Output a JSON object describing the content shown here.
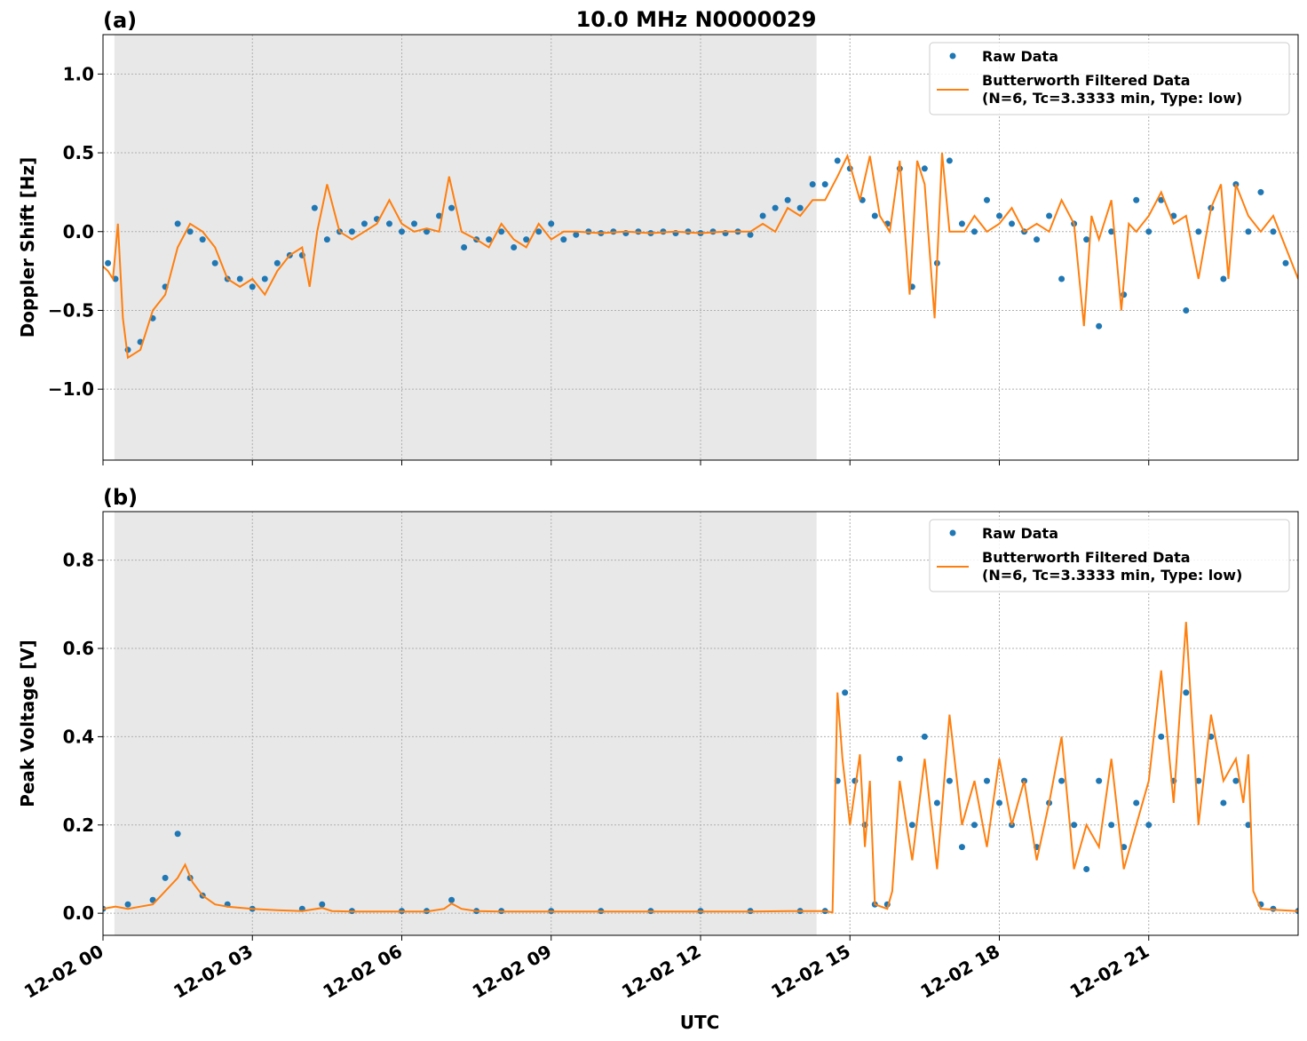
{
  "figure": {
    "title": "10.0 MHz N0000029",
    "xlabel": "UTC"
  },
  "colors": {
    "raw": "#1f77b4",
    "filtered": "#ff7f0e",
    "shade": "#e8e8e8",
    "grid": "#b0b0b0"
  },
  "legend": {
    "raw_label": "Raw Data",
    "filtered_label_line1": "Butterworth Filtered Data",
    "filtered_label_line2": "(N=6, Tc=3.3333 min, Type: low)"
  },
  "chart_data": [
    {
      "type": "scatter",
      "panel_label": "(a)",
      "ylabel": "Doppler Shift [Hz]",
      "xlim": [
        0,
        24
      ],
      "ylim": [
        -1.45,
        1.25
      ],
      "yticks": [
        1.0,
        0.5,
        0.0,
        -0.5,
        -1.0
      ],
      "ytick_labels": [
        "1.0",
        "0.5",
        "0.0",
        "−0.5",
        "−1.0"
      ],
      "xticks": [
        0,
        3,
        6,
        9,
        12,
        15,
        18,
        21
      ],
      "xtick_labels": [
        "12-02 00",
        "12-02 03",
        "12-02 06",
        "12-02 09",
        "12-02 12",
        "12-02 15",
        "12-02 18",
        "12-02 21"
      ],
      "shaded_x_range": [
        0.23,
        14.33
      ],
      "grid": true,
      "legend_position": "top-right",
      "series": [
        {
          "name": "Raw Data",
          "style": "points",
          "x": [
            0.1,
            0.25,
            0.5,
            0.75,
            1.0,
            1.25,
            1.5,
            1.75,
            2.0,
            2.25,
            2.5,
            2.75,
            3.0,
            3.25,
            3.5,
            3.75,
            4.0,
            4.25,
            4.5,
            4.75,
            5.0,
            5.25,
            5.5,
            5.75,
            6.0,
            6.25,
            6.5,
            6.75,
            7.0,
            7.25,
            7.5,
            7.75,
            8.0,
            8.25,
            8.5,
            8.75,
            9.0,
            9.25,
            9.5,
            9.75,
            10.0,
            10.25,
            10.5,
            10.75,
            11.0,
            11.25,
            11.5,
            11.75,
            12.0,
            12.25,
            12.5,
            12.75,
            13.0,
            13.25,
            13.5,
            13.75,
            14.0,
            14.25,
            14.5,
            14.75,
            15.0,
            15.25,
            15.5,
            15.75,
            16.0,
            16.25,
            16.5,
            16.75,
            17.0,
            17.25,
            17.5,
            17.75,
            18.0,
            18.25,
            18.5,
            18.75,
            19.0,
            19.25,
            19.5,
            19.75,
            20.0,
            20.25,
            20.5,
            20.75,
            21.0,
            21.25,
            21.5,
            21.75,
            22.0,
            22.25,
            22.5,
            22.75,
            23.0,
            23.25,
            23.5,
            23.75
          ],
          "y": [
            -0.2,
            -0.3,
            -0.75,
            -0.7,
            -0.55,
            -0.35,
            0.05,
            0.0,
            -0.05,
            -0.2,
            -0.3,
            -0.3,
            -0.35,
            -0.3,
            -0.2,
            -0.15,
            -0.15,
            0.15,
            -0.05,
            0.0,
            0.0,
            0.05,
            0.08,
            0.05,
            0.0,
            0.05,
            0.0,
            0.1,
            0.15,
            -0.1,
            -0.05,
            -0.05,
            0.0,
            -0.1,
            -0.05,
            0.0,
            0.05,
            -0.05,
            -0.02,
            0.0,
            -0.01,
            0.0,
            -0.01,
            0.0,
            -0.01,
            0.0,
            -0.01,
            0.0,
            -0.01,
            0.0,
            -0.01,
            0.0,
            -0.02,
            0.1,
            0.15,
            0.2,
            0.15,
            0.3,
            0.3,
            0.45,
            0.4,
            0.2,
            0.1,
            0.05,
            0.4,
            -0.35,
            0.4,
            -0.2,
            0.45,
            0.05,
            0.0,
            0.2,
            0.1,
            0.05,
            0.0,
            -0.05,
            0.1,
            -0.3,
            0.05,
            -0.05,
            -0.6,
            0.0,
            -0.4,
            0.2,
            0.0,
            0.2,
            0.1,
            -0.5,
            0.0,
            0.15,
            -0.3,
            0.3,
            0.0,
            0.25,
            0.0,
            -0.2
          ]
        },
        {
          "name": "Butterworth Filtered Data",
          "style": "line",
          "x": [
            0.0,
            0.1,
            0.2,
            0.3,
            0.4,
            0.5,
            0.75,
            1.0,
            1.25,
            1.5,
            1.75,
            2.0,
            2.25,
            2.5,
            2.75,
            3.0,
            3.25,
            3.5,
            3.75,
            4.0,
            4.15,
            4.3,
            4.5,
            4.75,
            5.0,
            5.25,
            5.5,
            5.75,
            6.0,
            6.25,
            6.5,
            6.75,
            6.95,
            7.2,
            7.5,
            7.75,
            8.0,
            8.25,
            8.5,
            8.75,
            9.0,
            9.25,
            9.5,
            10.0,
            10.5,
            11.0,
            11.5,
            12.0,
            12.5,
            13.0,
            13.25,
            13.5,
            13.75,
            14.0,
            14.25,
            14.5,
            14.75,
            14.95,
            15.2,
            15.4,
            15.6,
            15.8,
            16.0,
            16.2,
            16.35,
            16.5,
            16.7,
            16.85,
            17.0,
            17.15,
            17.3,
            17.5,
            17.75,
            18.0,
            18.25,
            18.5,
            18.75,
            19.0,
            19.25,
            19.5,
            19.7,
            19.85,
            20.0,
            20.25,
            20.45,
            20.6,
            20.75,
            21.0,
            21.25,
            21.5,
            21.75,
            22.0,
            22.25,
            22.45,
            22.6,
            22.75,
            23.0,
            23.25,
            23.5,
            23.75,
            24.0
          ],
          "y": [
            -0.22,
            -0.25,
            -0.3,
            0.05,
            -0.55,
            -0.8,
            -0.75,
            -0.5,
            -0.4,
            -0.1,
            0.05,
            0.0,
            -0.1,
            -0.3,
            -0.35,
            -0.3,
            -0.4,
            -0.25,
            -0.15,
            -0.1,
            -0.35,
            0.0,
            0.3,
            0.0,
            -0.05,
            0.0,
            0.05,
            0.2,
            0.05,
            0.0,
            0.02,
            0.0,
            0.35,
            0.0,
            -0.05,
            -0.1,
            0.05,
            -0.05,
            -0.1,
            0.05,
            -0.05,
            0.0,
            0.0,
            -0.01,
            0.0,
            -0.01,
            0.0,
            -0.01,
            0.0,
            0.0,
            0.05,
            0.0,
            0.15,
            0.1,
            0.2,
            0.2,
            0.35,
            0.48,
            0.2,
            0.48,
            0.1,
            0.0,
            0.45,
            -0.4,
            0.45,
            0.3,
            -0.55,
            0.5,
            0.0,
            0.0,
            0.0,
            0.1,
            0.0,
            0.05,
            0.15,
            0.0,
            0.05,
            0.0,
            0.2,
            0.05,
            -0.6,
            0.1,
            -0.05,
            0.2,
            -0.5,
            0.05,
            0.0,
            0.1,
            0.25,
            0.05,
            0.1,
            -0.3,
            0.15,
            0.3,
            -0.3,
            0.3,
            0.1,
            0.0,
            0.1,
            -0.1,
            -0.3
          ]
        }
      ]
    },
    {
      "type": "scatter",
      "panel_label": "(b)",
      "ylabel": "Peak Voltage [V]",
      "xlim": [
        0,
        24
      ],
      "ylim": [
        -0.05,
        0.91
      ],
      "yticks": [
        0.8,
        0.6,
        0.4,
        0.2,
        0.0
      ],
      "ytick_labels": [
        "0.8",
        "0.6",
        "0.4",
        "0.2",
        "0.0"
      ],
      "xticks": [
        0,
        3,
        6,
        9,
        12,
        15,
        18,
        21
      ],
      "xtick_labels": [
        "12-02 00",
        "12-02 03",
        "12-02 06",
        "12-02 09",
        "12-02 12",
        "12-02 15",
        "12-02 18",
        "12-02 21"
      ],
      "shaded_x_range": [
        0.23,
        14.33
      ],
      "grid": true,
      "legend_position": "top-right",
      "series": [
        {
          "name": "Raw Data",
          "style": "points",
          "x": [
            0.0,
            0.5,
            1.0,
            1.25,
            1.5,
            1.75,
            2.0,
            2.5,
            3.0,
            4.0,
            4.4,
            5.0,
            6.0,
            6.5,
            7.0,
            7.5,
            8.0,
            9.0,
            10.0,
            11.0,
            12.0,
            13.0,
            14.0,
            14.5,
            14.75,
            14.9,
            15.1,
            15.3,
            15.5,
            15.75,
            16.0,
            16.25,
            16.5,
            16.75,
            17.0,
            17.25,
            17.5,
            17.75,
            18.0,
            18.25,
            18.5,
            18.75,
            19.0,
            19.25,
            19.5,
            19.75,
            20.0,
            20.25,
            20.5,
            20.75,
            21.0,
            21.25,
            21.5,
            21.75,
            22.0,
            22.25,
            22.5,
            22.75,
            23.0,
            23.25,
            23.5,
            24.0
          ],
          "y": [
            0.01,
            0.02,
            0.03,
            0.08,
            0.18,
            0.08,
            0.04,
            0.02,
            0.01,
            0.01,
            0.02,
            0.005,
            0.005,
            0.005,
            0.03,
            0.005,
            0.005,
            0.005,
            0.005,
            0.005,
            0.005,
            0.005,
            0.005,
            0.005,
            0.3,
            0.5,
            0.3,
            0.2,
            0.02,
            0.02,
            0.35,
            0.2,
            0.4,
            0.25,
            0.3,
            0.15,
            0.2,
            0.3,
            0.25,
            0.2,
            0.3,
            0.15,
            0.25,
            0.3,
            0.2,
            0.1,
            0.3,
            0.2,
            0.15,
            0.25,
            0.2,
            0.4,
            0.3,
            0.5,
            0.3,
            0.4,
            0.25,
            0.3,
            0.2,
            0.02,
            0.01,
            0.005
          ]
        },
        {
          "name": "Butterworth Filtered Data",
          "style": "line",
          "x": [
            0.0,
            0.25,
            0.5,
            0.75,
            1.0,
            1.25,
            1.5,
            1.65,
            1.8,
            2.0,
            2.25,
            2.5,
            3.0,
            3.5,
            4.0,
            4.4,
            4.6,
            5.0,
            6.0,
            6.5,
            6.85,
            7.0,
            7.2,
            7.5,
            8.0,
            9.0,
            10.0,
            11.0,
            12.0,
            13.0,
            14.0,
            14.5,
            14.65,
            14.75,
            14.85,
            15.0,
            15.2,
            15.3,
            15.4,
            15.5,
            15.75,
            15.85,
            16.0,
            16.25,
            16.5,
            16.75,
            17.0,
            17.25,
            17.5,
            17.75,
            18.0,
            18.25,
            18.5,
            18.75,
            19.0,
            19.25,
            19.5,
            19.75,
            20.0,
            20.25,
            20.5,
            20.75,
            21.0,
            21.25,
            21.5,
            21.75,
            22.0,
            22.25,
            22.5,
            22.75,
            22.9,
            23.0,
            23.1,
            23.25,
            23.5,
            24.0
          ],
          "y": [
            0.01,
            0.015,
            0.01,
            0.015,
            0.02,
            0.05,
            0.08,
            0.11,
            0.07,
            0.04,
            0.02,
            0.015,
            0.01,
            0.007,
            0.005,
            0.012,
            0.005,
            0.004,
            0.004,
            0.004,
            0.01,
            0.022,
            0.01,
            0.005,
            0.004,
            0.004,
            0.004,
            0.004,
            0.004,
            0.004,
            0.005,
            0.005,
            0.002,
            0.5,
            0.35,
            0.2,
            0.36,
            0.15,
            0.3,
            0.02,
            0.01,
            0.05,
            0.3,
            0.12,
            0.35,
            0.1,
            0.45,
            0.2,
            0.3,
            0.15,
            0.35,
            0.2,
            0.3,
            0.12,
            0.25,
            0.4,
            0.1,
            0.2,
            0.15,
            0.35,
            0.1,
            0.2,
            0.3,
            0.55,
            0.25,
            0.66,
            0.2,
            0.45,
            0.3,
            0.35,
            0.25,
            0.36,
            0.05,
            0.01,
            0.008,
            0.005
          ]
        }
      ]
    }
  ]
}
